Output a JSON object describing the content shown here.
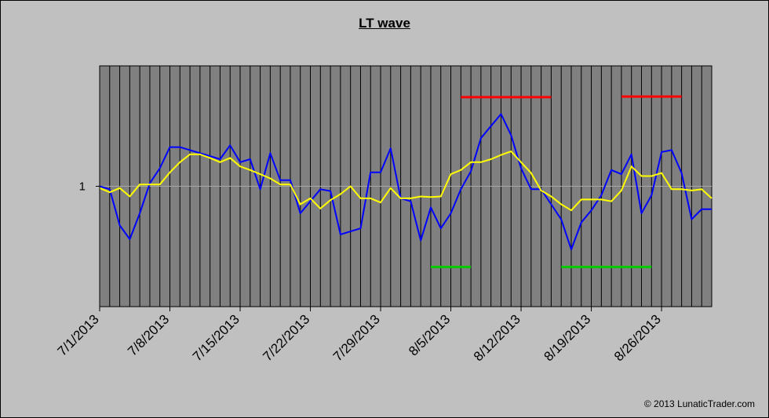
{
  "chart_data": {
    "type": "line",
    "title": "LT wave",
    "copyright": "© 2013 LunaticTrader.com",
    "x_start": "7/1/2013",
    "x_end": "8/31/2013",
    "x_tick_labels": [
      "7/1/2013",
      "7/8/2013",
      "7/15/2013",
      "7/22/2013",
      "7/29/2013",
      "8/5/2013",
      "8/12/2013",
      "8/19/2013",
      "8/26/2013"
    ],
    "y_tick_labels": [
      "1"
    ],
    "y_reference": 1.0,
    "ylim": [
      0.8,
      1.2
    ],
    "grid": "vertical daily lines",
    "plot_background": "#808080",
    "series": [
      {
        "color": "#0000ff",
        "values": [
          1.0,
          0.995,
          0.935,
          0.912,
          0.955,
          1.005,
          1.03,
          1.065,
          1.065,
          1.06,
          1.055,
          1.05,
          1.045,
          1.068,
          1.04,
          1.045,
          0.995,
          1.055,
          1.01,
          1.01,
          0.955,
          0.975,
          0.995,
          0.992,
          0.92,
          0.925,
          0.93,
          1.023,
          1.023,
          1.063,
          0.98,
          0.975,
          0.91,
          0.965,
          0.93,
          0.955,
          0.995,
          1.025,
          1.08,
          1.1,
          1.12,
          1.085,
          1.03,
          0.995,
          0.995,
          0.97,
          0.945,
          0.895,
          0.94,
          0.96,
          0.985,
          1.027,
          1.02,
          1.053,
          0.955,
          0.985,
          1.057,
          1.06,
          1.022,
          0.945,
          0.962,
          0.962
        ]
      },
      {
        "color": "#ffff00",
        "values": [
          0.997,
          0.99,
          0.997,
          0.983,
          1.003,
          1.003,
          1.003,
          1.023,
          1.04,
          1.053,
          1.053,
          1.047,
          1.04,
          1.047,
          1.033,
          1.027,
          1.02,
          1.013,
          1.003,
          1.003,
          0.97,
          0.98,
          0.963,
          0.977,
          0.987,
          1.0,
          0.98,
          0.98,
          0.973,
          0.997,
          0.98,
          0.98,
          0.983,
          0.982,
          0.983,
          1.02,
          1.027,
          1.04,
          1.04,
          1.045,
          1.052,
          1.058,
          1.04,
          1.022,
          0.993,
          0.983,
          0.97,
          0.96,
          0.978,
          0.978,
          0.978,
          0.975,
          0.993,
          1.033,
          1.017,
          1.017,
          1.022,
          0.995,
          0.995,
          0.993,
          0.995,
          0.98
        ]
      }
    ],
    "annotations": [
      {
        "color": "#ff0000",
        "level": 1.148,
        "from_day": 36,
        "to_day": 45
      },
      {
        "color": "#ff0000",
        "level": 1.149,
        "from_day": 52,
        "to_day": 58
      },
      {
        "color": "#00cc00",
        "level": 0.866,
        "from_day": 33,
        "to_day": 37
      },
      {
        "color": "#00cc00",
        "level": 0.866,
        "from_day": 46,
        "to_day": 55
      }
    ]
  }
}
